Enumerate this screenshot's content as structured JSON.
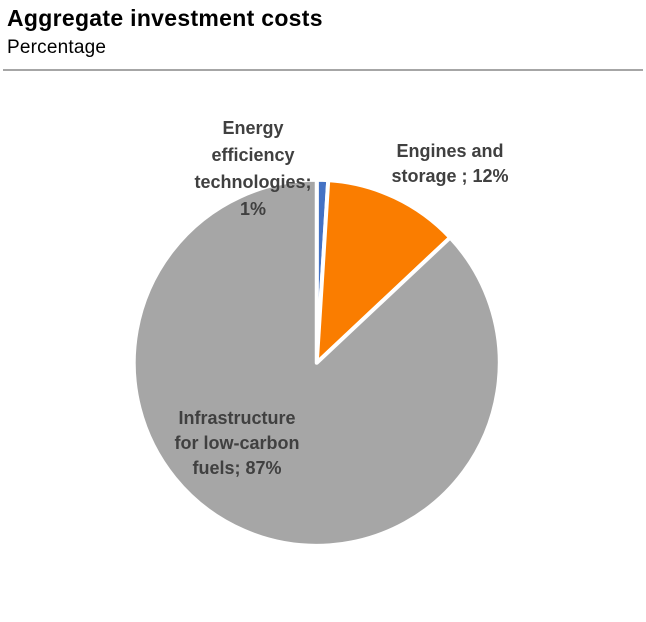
{
  "header": {
    "title": "Aggregate investment costs",
    "subtitle": "Percentage"
  },
  "chart_data": {
    "type": "pie",
    "title": "Aggregate investment costs",
    "subtitle": "Percentage",
    "unit": "percent",
    "start_angle_deg": 0,
    "direction": "clockwise",
    "legend": "none",
    "slice_border_color": "#FFFFFF",
    "label_text_color": "#404040",
    "slices": [
      {
        "name": "Energy efficiency technologies",
        "value": 1,
        "color": "#4472C4",
        "label": "Energy\nefficiency\ntechnologies;\n1%"
      },
      {
        "name": "Engines and storage",
        "value": 12,
        "color": "#FA7D00",
        "label": "Engines and\nstorage ; 12%"
      },
      {
        "name": "Infrastructure for low-carbon fuels",
        "value": 87,
        "color": "#A6A6A6",
        "label": "Infrastructure\nfor low-carbon\nfuels; 87%"
      }
    ]
  }
}
